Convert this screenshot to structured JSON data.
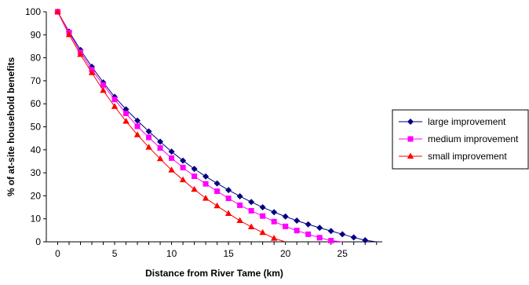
{
  "chart_data": {
    "type": "line",
    "title": "",
    "xlabel": "Distance from River Tame (km)",
    "ylabel": "% of at-site household benefits",
    "xlim": [
      -1,
      28.5
    ],
    "ylim": [
      0,
      100
    ],
    "x_ticks": [
      0,
      5,
      10,
      15,
      20,
      25
    ],
    "y_ticks": [
      0,
      10,
      20,
      30,
      40,
      50,
      60,
      70,
      80,
      90,
      100
    ],
    "grid": false,
    "legend_position": "right",
    "series": [
      {
        "name": "large improvement",
        "color": "#000080",
        "marker": "diamond",
        "x": [
          0,
          1,
          2,
          3,
          4,
          5,
          6,
          7,
          8,
          9,
          10,
          11,
          12,
          13,
          14,
          15,
          16,
          17,
          18,
          19,
          20,
          21,
          22,
          23,
          24,
          25,
          26,
          27,
          28
        ],
        "values": [
          100,
          91.4,
          83.4,
          76.1,
          69.3,
          63.0,
          57.6,
          52.7,
          48.0,
          43.5,
          39.2,
          35.3,
          31.7,
          28.4,
          25.4,
          22.5,
          19.8,
          17.3,
          15.0,
          12.9,
          11.0,
          9.2,
          7.6,
          6.1,
          4.7,
          3.3,
          1.9,
          0.7,
          0
        ]
      },
      {
        "name": "medium improvement",
        "color": "#FF00FF",
        "marker": "square",
        "x": [
          0,
          1,
          2,
          3,
          4,
          5,
          6,
          7,
          8,
          9,
          10,
          11,
          12,
          13,
          14,
          15,
          16,
          17,
          18,
          19,
          20,
          21,
          22,
          23,
          24,
          25
        ],
        "values": [
          100,
          91.0,
          82.4,
          74.8,
          68.2,
          61.9,
          55.8,
          50.2,
          45.4,
          40.8,
          36.4,
          32.3,
          28.5,
          25.2,
          22.0,
          18.9,
          15.9,
          13.5,
          11.2,
          8.8,
          6.7,
          4.9,
          3.3,
          1.8,
          0.5,
          0
        ]
      },
      {
        "name": "small improvement",
        "color": "#FF0000",
        "marker": "triangle",
        "x": [
          0,
          1,
          2,
          3,
          4,
          5,
          6,
          7,
          8,
          9,
          10,
          11,
          12,
          13,
          14,
          15,
          16,
          17,
          18,
          19,
          20
        ],
        "values": [
          100,
          90.0,
          81.4,
          73.5,
          65.8,
          58.8,
          52.4,
          46.5,
          41.1,
          36.1,
          31.2,
          26.9,
          22.8,
          18.9,
          15.6,
          12.3,
          9.2,
          6.5,
          4.0,
          1.5,
          0
        ]
      }
    ]
  }
}
